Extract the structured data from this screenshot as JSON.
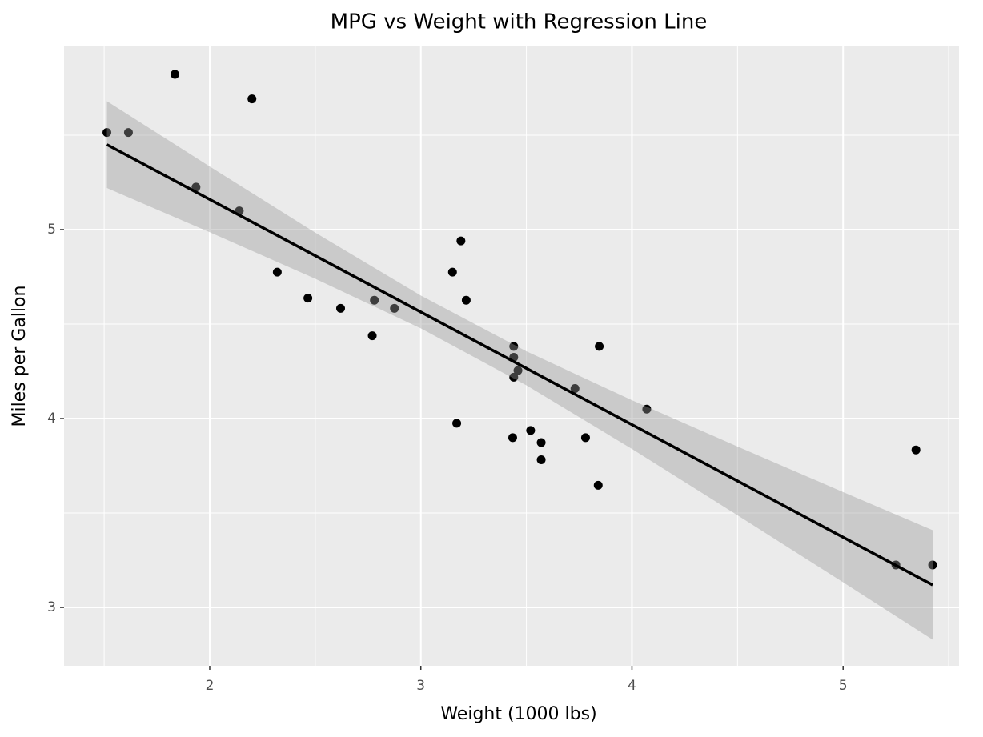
{
  "chart_data": {
    "type": "scatter",
    "title": "MPG vs Weight with Regression Line",
    "x_label": "Weight (1000 lbs)",
    "y_label": "Miles per Gallon",
    "x": [
      2.62,
      2.875,
      2.32,
      3.215,
      3.44,
      3.46,
      3.57,
      3.19,
      3.15,
      3.44,
      3.44,
      4.07,
      3.73,
      3.78,
      5.25,
      5.424,
      5.345,
      2.2,
      1.615,
      1.835,
      2.465,
      3.52,
      3.435,
      3.84,
      3.845,
      1.935,
      2.14,
      1.513,
      3.17,
      2.77,
      3.57,
      2.78
    ],
    "y": [
      4.583,
      4.583,
      4.775,
      4.626,
      4.324,
      4.254,
      3.782,
      4.94,
      4.775,
      4.382,
      4.219,
      4.05,
      4.159,
      3.899,
      3.225,
      3.225,
      3.834,
      5.692,
      5.514,
      5.822,
      4.637,
      3.937,
      3.899,
      3.647,
      4.382,
      5.225,
      5.099,
      5.514,
      3.975,
      4.438,
      3.873,
      4.626
    ],
    "color": "#000000",
    "line": {
      "x": [
        1.513,
        5.424
      ],
      "y": [
        5.45,
        3.119
      ],
      "color": "#000000"
    },
    "band": {
      "x": [
        1.513,
        2,
        2.5,
        3,
        3.5,
        4,
        4.5,
        5,
        5.424
      ],
      "lower": [
        5.22,
        4.986,
        4.74,
        4.477,
        4.176,
        3.839,
        3.488,
        3.133,
        2.829
      ],
      "upper": [
        5.68,
        5.334,
        4.984,
        4.651,
        4.356,
        4.097,
        3.852,
        3.611,
        3.409
      ],
      "color": "#999999"
    },
    "xlim": [
      1.31,
      5.549
    ],
    "ylim": [
      2.691,
      5.97
    ],
    "xticks": [
      2,
      3,
      4,
      5
    ],
    "yticks": [
      3,
      4,
      5
    ],
    "grid": true
  }
}
